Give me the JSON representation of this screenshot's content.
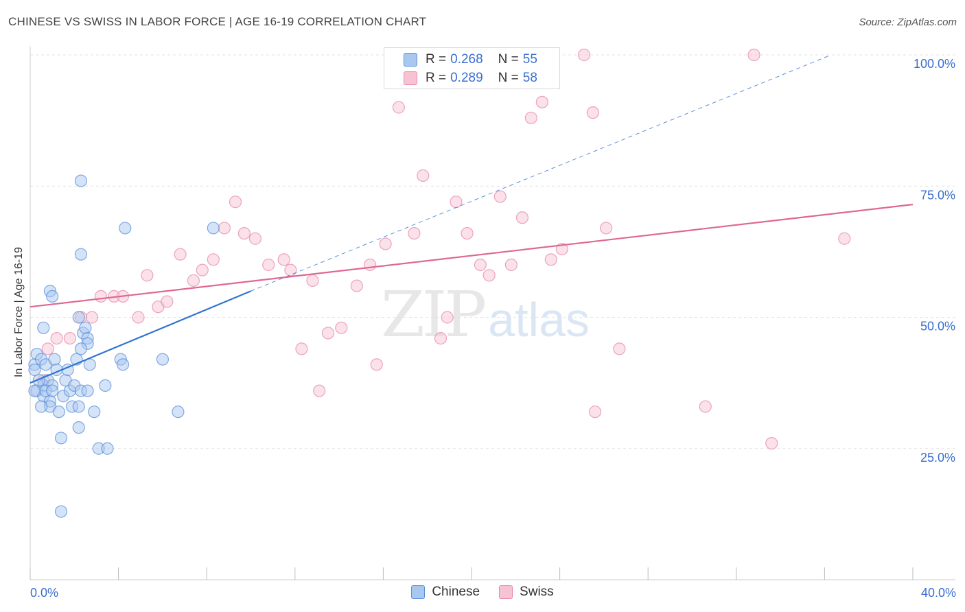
{
  "header": {
    "title": "CHINESE VS SWISS IN LABOR FORCE | AGE 16-19 CORRELATION CHART",
    "source": "Source: ZipAtlas.com"
  },
  "watermark": {
    "zip": "ZIP",
    "atlas": "atlas"
  },
  "legend": {
    "rows": [
      {
        "r_label": "R =",
        "r_value": "0.268",
        "n_label": "N =",
        "n_value": "55"
      },
      {
        "r_label": "R =",
        "r_value": "0.289",
        "n_label": "N =",
        "n_value": "58"
      }
    ],
    "bottom": [
      "Chinese",
      "Swiss"
    ]
  },
  "colors": {
    "chinese_fill": "#a9c8f0",
    "chinese_stroke": "#5a8fd8",
    "chinese_line": "#2f74d0",
    "swiss_fill": "#f7c3d3",
    "swiss_stroke": "#e58aa8",
    "swiss_line": "#e06792",
    "grid": "#e2e2e2",
    "tick_label": "#3a6fd0"
  },
  "chart_data": {
    "type": "scatter",
    "title": "CHINESE VS SWISS IN LABOR FORCE | AGE 16-19 CORRELATION CHART",
    "xlabel": "",
    "ylabel": "In Labor Force | Age 16-19",
    "xlim": [
      0,
      40
    ],
    "ylim": [
      0,
      102
    ],
    "x_tick_labels": [
      "0.0%",
      "40.0%"
    ],
    "y_ticks": [
      25,
      50,
      75,
      100
    ],
    "y_tick_labels": [
      "25.0%",
      "50.0%",
      "75.0%",
      "100.0%"
    ],
    "series": [
      {
        "name": "Chinese",
        "R": 0.268,
        "N": 55,
        "trend": {
          "x": [
            0,
            10
          ],
          "y": [
            37.5,
            55.0
          ],
          "dashed_extension": {
            "x": [
              10,
              36.3
            ],
            "y": [
              55.0,
              100.0
            ]
          }
        },
        "points": [
          [
            0.2,
            41
          ],
          [
            0.3,
            43
          ],
          [
            0.3,
            36
          ],
          [
            0.5,
            42
          ],
          [
            0.6,
            37
          ],
          [
            0.6,
            35
          ],
          [
            0.7,
            41
          ],
          [
            0.8,
            38
          ],
          [
            0.9,
            34
          ],
          [
            0.9,
            33
          ],
          [
            1.0,
            37
          ],
          [
            1.1,
            42
          ],
          [
            1.2,
            40
          ],
          [
            1.3,
            32
          ],
          [
            1.4,
            27
          ],
          [
            1.5,
            35
          ],
          [
            1.6,
            38
          ],
          [
            1.7,
            40
          ],
          [
            1.8,
            36
          ],
          [
            1.9,
            33
          ],
          [
            2.0,
            37
          ],
          [
            2.1,
            42
          ],
          [
            2.2,
            33
          ],
          [
            2.3,
            36
          ],
          [
            2.4,
            47
          ],
          [
            2.5,
            48
          ],
          [
            2.6,
            46
          ],
          [
            2.7,
            41
          ],
          [
            0.6,
            48
          ],
          [
            0.9,
            55
          ],
          [
            1.0,
            54
          ],
          [
            2.2,
            50
          ],
          [
            2.6,
            45
          ],
          [
            2.3,
            44
          ],
          [
            2.2,
            29
          ],
          [
            2.6,
            36
          ],
          [
            2.9,
            32
          ],
          [
            3.1,
            25
          ],
          [
            3.5,
            25
          ],
          [
            3.4,
            37
          ],
          [
            4.1,
            42
          ],
          [
            4.2,
            41
          ],
          [
            4.3,
            67
          ],
          [
            6.0,
            42
          ],
          [
            6.7,
            32
          ],
          [
            8.3,
            67
          ],
          [
            2.3,
            76
          ],
          [
            2.3,
            62
          ],
          [
            1.4,
            13
          ],
          [
            0.2,
            36
          ],
          [
            0.4,
            38
          ],
          [
            0.5,
            33
          ],
          [
            0.7,
            36
          ],
          [
            1.0,
            36
          ],
          [
            0.2,
            40
          ]
        ]
      },
      {
        "name": "Swiss",
        "R": 0.289,
        "N": 58,
        "trend": {
          "x": [
            0,
            40
          ],
          "y": [
            52.0,
            71.5
          ]
        },
        "points": [
          [
            0.6,
            38
          ],
          [
            0.8,
            44
          ],
          [
            1.2,
            46
          ],
          [
            1.8,
            46
          ],
          [
            2.3,
            50
          ],
          [
            2.8,
            50
          ],
          [
            3.2,
            54
          ],
          [
            3.8,
            54
          ],
          [
            4.2,
            54
          ],
          [
            4.9,
            50
          ],
          [
            5.3,
            58
          ],
          [
            5.8,
            52
          ],
          [
            6.2,
            53
          ],
          [
            6.8,
            62
          ],
          [
            7.4,
            57
          ],
          [
            7.8,
            59
          ],
          [
            8.3,
            61
          ],
          [
            8.8,
            67
          ],
          [
            9.3,
            72
          ],
          [
            9.7,
            66
          ],
          [
            10.2,
            65
          ],
          [
            10.8,
            60
          ],
          [
            11.5,
            61
          ],
          [
            11.8,
            59
          ],
          [
            12.3,
            44
          ],
          [
            12.8,
            57
          ],
          [
            13.1,
            36
          ],
          [
            13.5,
            47
          ],
          [
            14.1,
            48
          ],
          [
            14.8,
            56
          ],
          [
            15.4,
            60
          ],
          [
            15.7,
            41
          ],
          [
            16.1,
            64
          ],
          [
            16.7,
            90
          ],
          [
            17.4,
            66
          ],
          [
            17.8,
            77
          ],
          [
            18.6,
            46
          ],
          [
            18.9,
            50
          ],
          [
            19.3,
            72
          ],
          [
            19.8,
            66
          ],
          [
            20.4,
            60
          ],
          [
            20.8,
            58
          ],
          [
            21.3,
            73
          ],
          [
            21.8,
            60
          ],
          [
            22.3,
            69
          ],
          [
            22.7,
            88
          ],
          [
            23.2,
            91
          ],
          [
            23.6,
            61
          ],
          [
            24.1,
            63
          ],
          [
            25.1,
            100
          ],
          [
            25.5,
            89
          ],
          [
            25.6,
            32
          ],
          [
            26.1,
            67
          ],
          [
            26.7,
            44
          ],
          [
            30.6,
            33
          ],
          [
            32.8,
            100
          ],
          [
            33.6,
            26
          ],
          [
            36.9,
            65
          ]
        ]
      }
    ]
  }
}
